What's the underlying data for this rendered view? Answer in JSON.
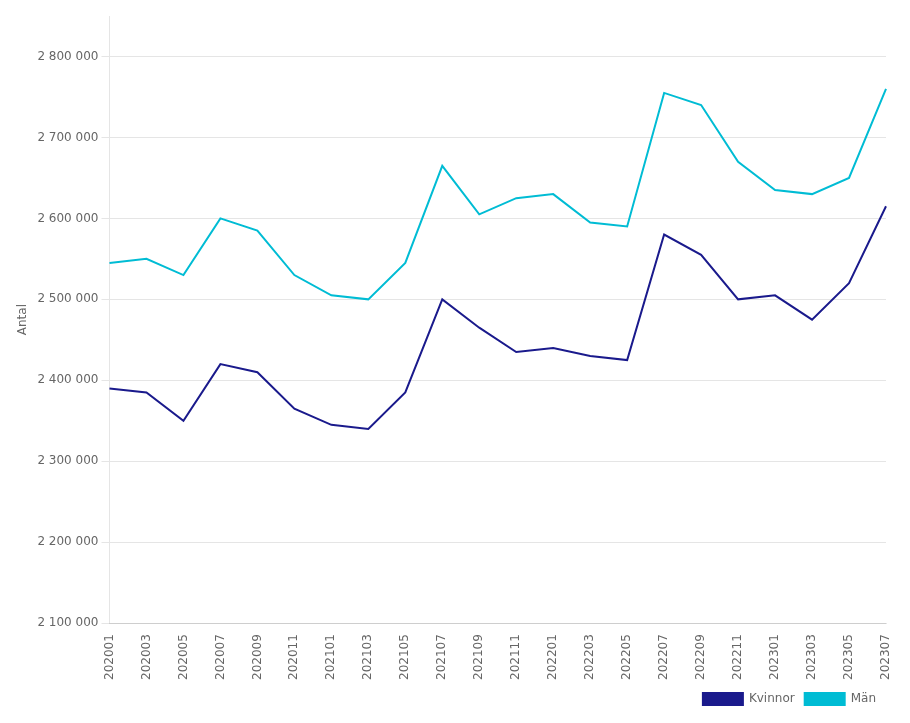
{
  "chart_data": {
    "type": "line",
    "ylabel": "Antal",
    "categories": [
      "202001",
      "202003",
      "202005",
      "202007",
      "202009",
      "202011",
      "202101",
      "202103",
      "202105",
      "202107",
      "202109",
      "202111",
      "202201",
      "202203",
      "202205",
      "202207",
      "202209",
      "202211",
      "202301",
      "202303",
      "202305",
      "202307"
    ],
    "series": [
      {
        "name": "Kvinnor",
        "color": "#1a1a8c",
        "values": [
          2390000,
          2385000,
          2350000,
          2420000,
          2410000,
          2365000,
          2345000,
          2340000,
          2385000,
          2500000,
          2465000,
          2435000,
          2440000,
          2430000,
          2425000,
          2580000,
          2555000,
          2500000,
          2505000,
          2475000,
          2520000,
          2615000
        ]
      },
      {
        "name": "Män",
        "color": "#00bcd4",
        "values": [
          2545000,
          2550000,
          2530000,
          2600000,
          2585000,
          2530000,
          2505000,
          2500000,
          2545000,
          2665000,
          2605000,
          2625000,
          2630000,
          2595000,
          2590000,
          2755000,
          2740000,
          2670000,
          2635000,
          2630000,
          2650000,
          2760000
        ]
      }
    ],
    "ylim": [
      2100000,
      2850000
    ],
    "yticks": [
      {
        "value": 2100000,
        "label": "2 100 000"
      },
      {
        "value": 2200000,
        "label": "2 200 000"
      },
      {
        "value": 2300000,
        "label": "2 300 000"
      },
      {
        "value": 2400000,
        "label": "2 400 000"
      },
      {
        "value": 2500000,
        "label": "2 500 000"
      },
      {
        "value": 2600000,
        "label": "2 600 000"
      },
      {
        "value": 2700000,
        "label": "2 700 000"
      },
      {
        "value": 2800000,
        "label": "2 800 000"
      }
    ],
    "grid": "y",
    "legend": "lower right"
  }
}
